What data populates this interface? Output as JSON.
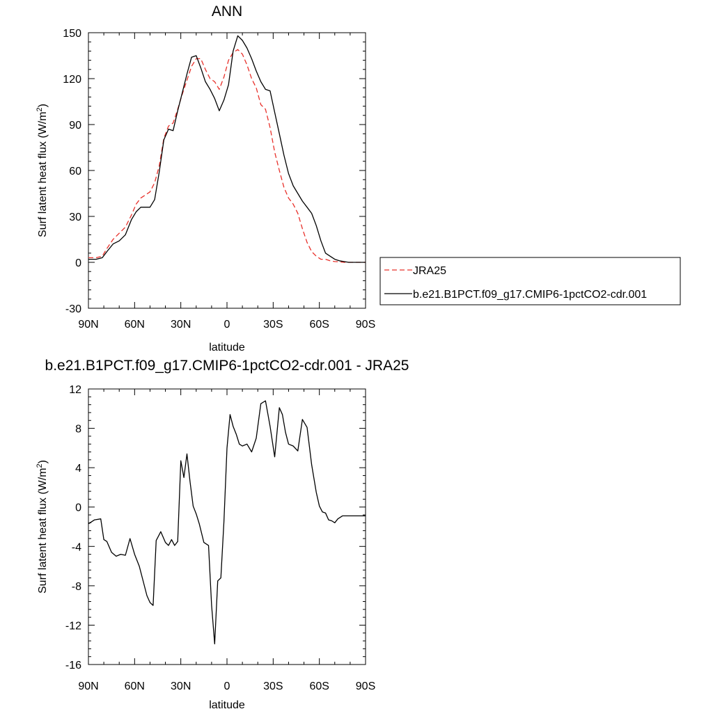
{
  "chart_data": [
    {
      "type": "line",
      "title": "ANN",
      "xlabel": "latitude",
      "ylabel": "Surf latent heat flux (W/m",
      "ylabel_sup": "2",
      "ylabel_tail": ")",
      "xlim": [
        90,
        -90
      ],
      "ylim": [
        -30,
        150
      ],
      "xticks": [
        90,
        60,
        30,
        0,
        -30,
        -60,
        -90
      ],
      "xtick_labels": [
        "90N",
        "60N",
        "30N",
        "0",
        "30S",
        "60S",
        "90S"
      ],
      "yticks": [
        -30,
        0,
        30,
        60,
        90,
        120,
        150
      ],
      "ytick_labels": [
        "-30",
        "0",
        "30",
        "60",
        "90",
        "120",
        "150"
      ],
      "legend": "right",
      "series": [
        {
          "name": "JRA25",
          "color": "#e8302a",
          "dash": "dashed",
          "x": [
            90,
            85,
            81,
            78,
            74,
            70,
            66,
            62,
            59,
            56,
            53,
            50,
            47,
            44,
            41,
            38,
            35,
            32,
            29,
            26,
            23,
            20,
            17,
            14,
            11,
            8,
            5,
            2,
            -1,
            -4,
            -7,
            -10,
            -13,
            -16,
            -19,
            -22,
            -25,
            -28,
            -31,
            -34,
            -37,
            -40,
            -43,
            -46,
            -49,
            -52,
            -55,
            -58,
            -61,
            -64,
            -67,
            -70,
            -73,
            -76,
            -79,
            -82,
            -85,
            -88,
            -90
          ],
          "y": [
            3,
            3,
            4,
            9,
            15,
            19,
            23,
            31,
            38,
            42,
            44,
            46,
            52,
            63,
            81,
            89,
            91,
            100,
            110,
            119,
            128,
            133,
            133,
            126,
            120,
            118,
            113,
            121,
            132,
            137,
            139,
            136,
            129,
            120,
            114,
            103,
            100,
            88,
            72,
            60,
            49,
            42,
            38,
            32,
            22,
            13,
            7,
            4,
            2,
            2,
            1,
            0.5,
            0.3,
            0,
            0,
            0,
            0,
            0,
            0
          ]
        },
        {
          "name": "b.e21.B1PCT.f09_g17.CMIP6-1pctCO2-cdr.001",
          "color": "#000000",
          "dash": "solid",
          "x": [
            90,
            85,
            81,
            78,
            74,
            70,
            66,
            62,
            59,
            56,
            53,
            50,
            47,
            44,
            41,
            38,
            35,
            32,
            29,
            26,
            23,
            20,
            17,
            14,
            11,
            8,
            5,
            2,
            -1,
            -4,
            -7,
            -10,
            -13,
            -16,
            -19,
            -22,
            -25,
            -28,
            -31,
            -34,
            -37,
            -40,
            -43,
            -46,
            -49,
            -52,
            -55,
            -58,
            -61,
            -64,
            -67,
            -70,
            -73,
            -76,
            -79,
            -82,
            -85,
            -88,
            -90
          ],
          "y": [
            2,
            2,
            3,
            7,
            12,
            14,
            18,
            28,
            33,
            36,
            36,
            36,
            41,
            59,
            80,
            87,
            86,
            99,
            111,
            123,
            134,
            135,
            127,
            118,
            113,
            107,
            99,
            106,
            116,
            138,
            148,
            145,
            140,
            133,
            125,
            118,
            113,
            112,
            98,
            84,
            70,
            58,
            50,
            45,
            40,
            36,
            32,
            24,
            14,
            6,
            4,
            2,
            1,
            0.5,
            0,
            0,
            0,
            0,
            0
          ]
        }
      ]
    },
    {
      "type": "line",
      "title": "b.e21.B1PCT.f09_g17.CMIP6-1pctCO2-cdr.001 - JRA25",
      "xlabel": "latitude",
      "ylabel": "Surf latent heat flux (W/m",
      "ylabel_sup": "2",
      "ylabel_tail": ")",
      "xlim": [
        90,
        -90
      ],
      "ylim": [
        -16,
        12
      ],
      "xticks": [
        90,
        60,
        30,
        0,
        -30,
        -60,
        -90
      ],
      "xtick_labels": [
        "90N",
        "60N",
        "30N",
        "0",
        "30S",
        "60S",
        "90S"
      ],
      "yticks": [
        -16,
        -12,
        -8,
        -4,
        0,
        4,
        8,
        12
      ],
      "ytick_labels": [
        "-16",
        "-12",
        "-8",
        "-4",
        "0",
        "4",
        "8",
        "12"
      ],
      "series": [
        {
          "color": "#000000",
          "dash": "solid",
          "x": [
            90,
            86,
            82,
            80,
            78,
            75,
            72,
            69,
            66,
            63,
            60,
            57,
            54,
            52,
            50,
            48,
            46,
            43,
            40,
            38,
            36,
            34,
            32,
            30,
            28,
            26,
            24,
            22,
            20,
            18,
            15,
            12,
            10,
            8,
            6,
            4,
            2,
            0,
            -2,
            -4,
            -6,
            -8,
            -10,
            -13,
            -16,
            -19,
            -22,
            -25,
            -28,
            -31,
            -34,
            -36,
            -38,
            -40,
            -43,
            -46,
            -49,
            -52,
            -55,
            -58,
            -60,
            -62,
            -64,
            -66,
            -68,
            -70,
            -72,
            -75,
            -78,
            -81,
            -84,
            -87,
            -90
          ],
          "y": [
            -1.7,
            -1.3,
            -1.2,
            -3.3,
            -3.5,
            -4.6,
            -5,
            -4.8,
            -4.9,
            -3.2,
            -4.8,
            -6,
            -7.8,
            -9,
            -9.7,
            -10,
            -3.4,
            -2.5,
            -3.6,
            -3.9,
            -3.3,
            -3.9,
            -3.5,
            4.7,
            3,
            5.4,
            2.6,
            0.1,
            -0.7,
            -1.7,
            -3.6,
            -3.9,
            -10,
            -13.9,
            -7.5,
            -7.2,
            -1.5,
            6,
            9.4,
            8.2,
            7.4,
            6.4,
            6.2,
            6.4,
            5.6,
            7,
            10.5,
            10.8,
            8.2,
            5.1,
            10.1,
            9.4,
            7.6,
            6.4,
            6.2,
            5.7,
            8.9,
            8.1,
            4.3,
            1.5,
            0.1,
            -0.5,
            -0.6,
            -1.3,
            -1.4,
            -1.6,
            -1.2,
            -0.9,
            -0.9,
            -0.9,
            -0.9,
            -0.9,
            -0.9
          ]
        }
      ]
    }
  ]
}
